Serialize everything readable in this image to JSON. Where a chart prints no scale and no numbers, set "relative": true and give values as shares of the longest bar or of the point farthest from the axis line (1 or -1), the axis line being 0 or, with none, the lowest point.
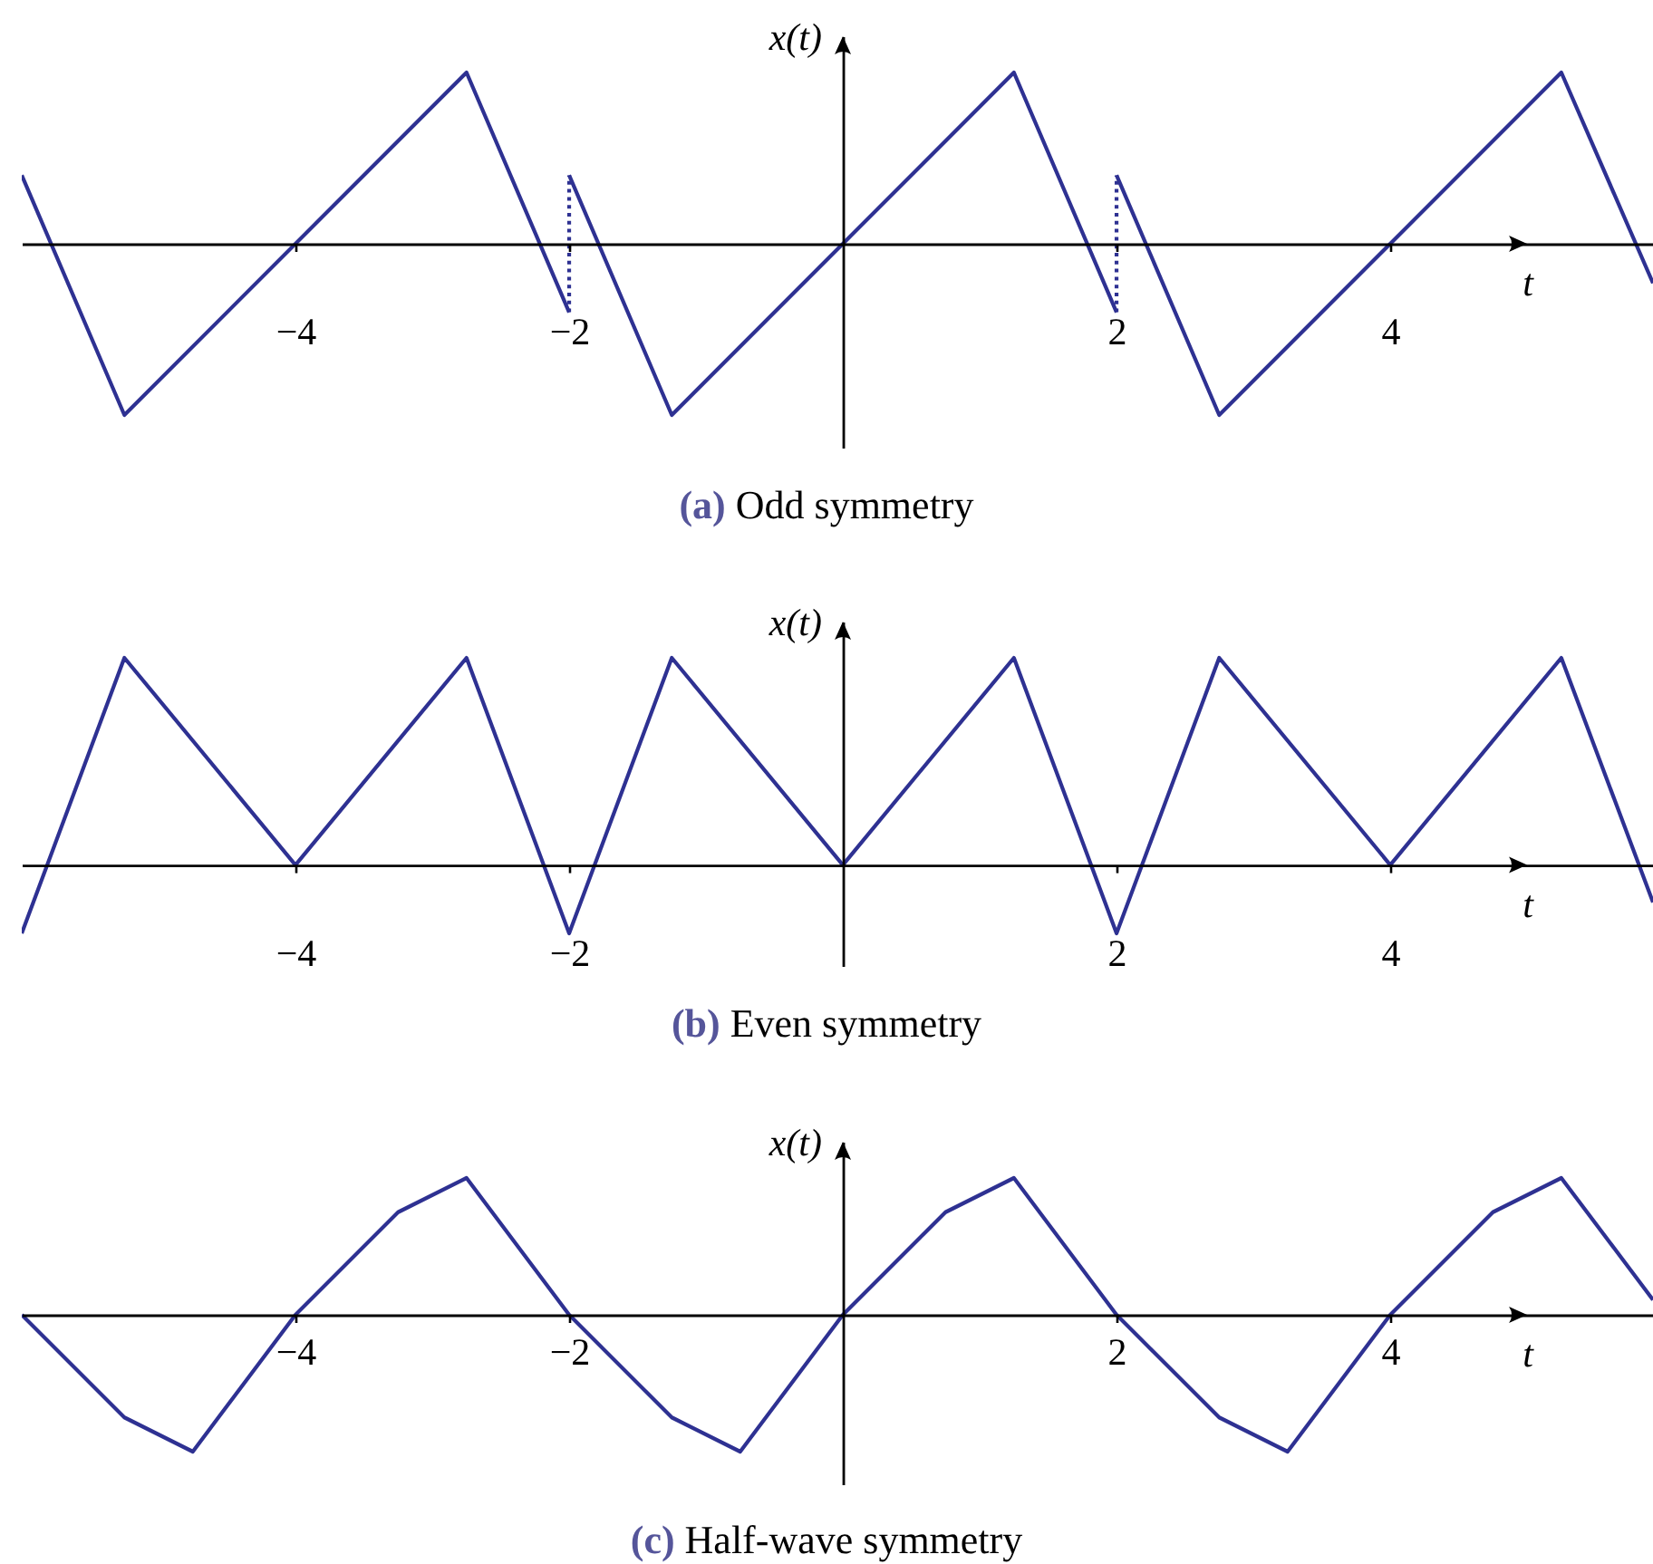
{
  "chart_data": [
    {
      "type": "line",
      "title": "(a) Odd symmetry",
      "xlabel": "t",
      "ylabel": "x(t)",
      "relative": true,
      "tick_labels": "x",
      "xlim": [
        -6,
        5.92
      ],
      "xticks": [
        -4,
        -2,
        2,
        4
      ],
      "series": [
        {
          "color": "#2e3192",
          "x": [
            -6,
            -5.25,
            -2.75,
            -2
          ],
          "values": [
            0.4,
            -1,
            1,
            -0.4
          ]
        },
        {
          "color": "#2e3192",
          "line_style": "dotted",
          "x": [
            -2,
            -2
          ],
          "values": [
            -0.4,
            0.4
          ]
        },
        {
          "color": "#2e3192",
          "x": [
            -2,
            -1.25,
            1.25,
            2
          ],
          "values": [
            0.4,
            -1,
            1,
            -0.4
          ]
        },
        {
          "color": "#2e3192",
          "line_style": "dotted",
          "x": [
            2,
            2
          ],
          "values": [
            -0.4,
            0.4
          ]
        },
        {
          "color": "#2e3192",
          "x": [
            2,
            2.75,
            5.25,
            5.92
          ],
          "values": [
            0.4,
            -1,
            1,
            -0.23
          ]
        }
      ]
    },
    {
      "type": "line",
      "title": "(b) Even symmetry",
      "xlabel": "t",
      "ylabel": "x(t)",
      "relative": true,
      "tick_labels": "x",
      "xlim": [
        -6,
        5.92
      ],
      "xticks": [
        -4,
        -2,
        2,
        4
      ],
      "x": [
        -6,
        -5.25,
        -4,
        -2.75,
        -2,
        -1.25,
        0,
        1.25,
        2,
        2.75,
        4,
        5.25,
        5.92
      ],
      "series": [
        {
          "color": "#2e3192",
          "values": [
            -0.33,
            1,
            0,
            1,
            -0.33,
            1,
            0,
            1,
            -0.33,
            1,
            0,
            1,
            -0.18
          ]
        }
      ]
    },
    {
      "type": "line",
      "title": "(c) Half-wave symmetry",
      "xlabel": "t",
      "ylabel": "x(t)",
      "relative": true,
      "tick_labels": "x",
      "xlim": [
        -6,
        5.92
      ],
      "xticks": [
        -4,
        -2,
        2,
        4
      ],
      "x": [
        -6,
        -5.25,
        -4.75,
        -4,
        -3.25,
        -2.75,
        -2,
        -1.25,
        -0.75,
        0,
        0.75,
        1.25,
        2,
        2.75,
        3.25,
        4,
        4.75,
        5.25,
        5.92
      ],
      "series": [
        {
          "color": "#2e3192",
          "values": [
            0,
            -0.75,
            -1,
            0,
            0.75,
            1,
            0,
            -0.75,
            -1,
            0,
            0.75,
            1,
            0,
            -0.75,
            -1,
            0,
            0.75,
            1,
            0.11
          ]
        }
      ]
    }
  ]
}
